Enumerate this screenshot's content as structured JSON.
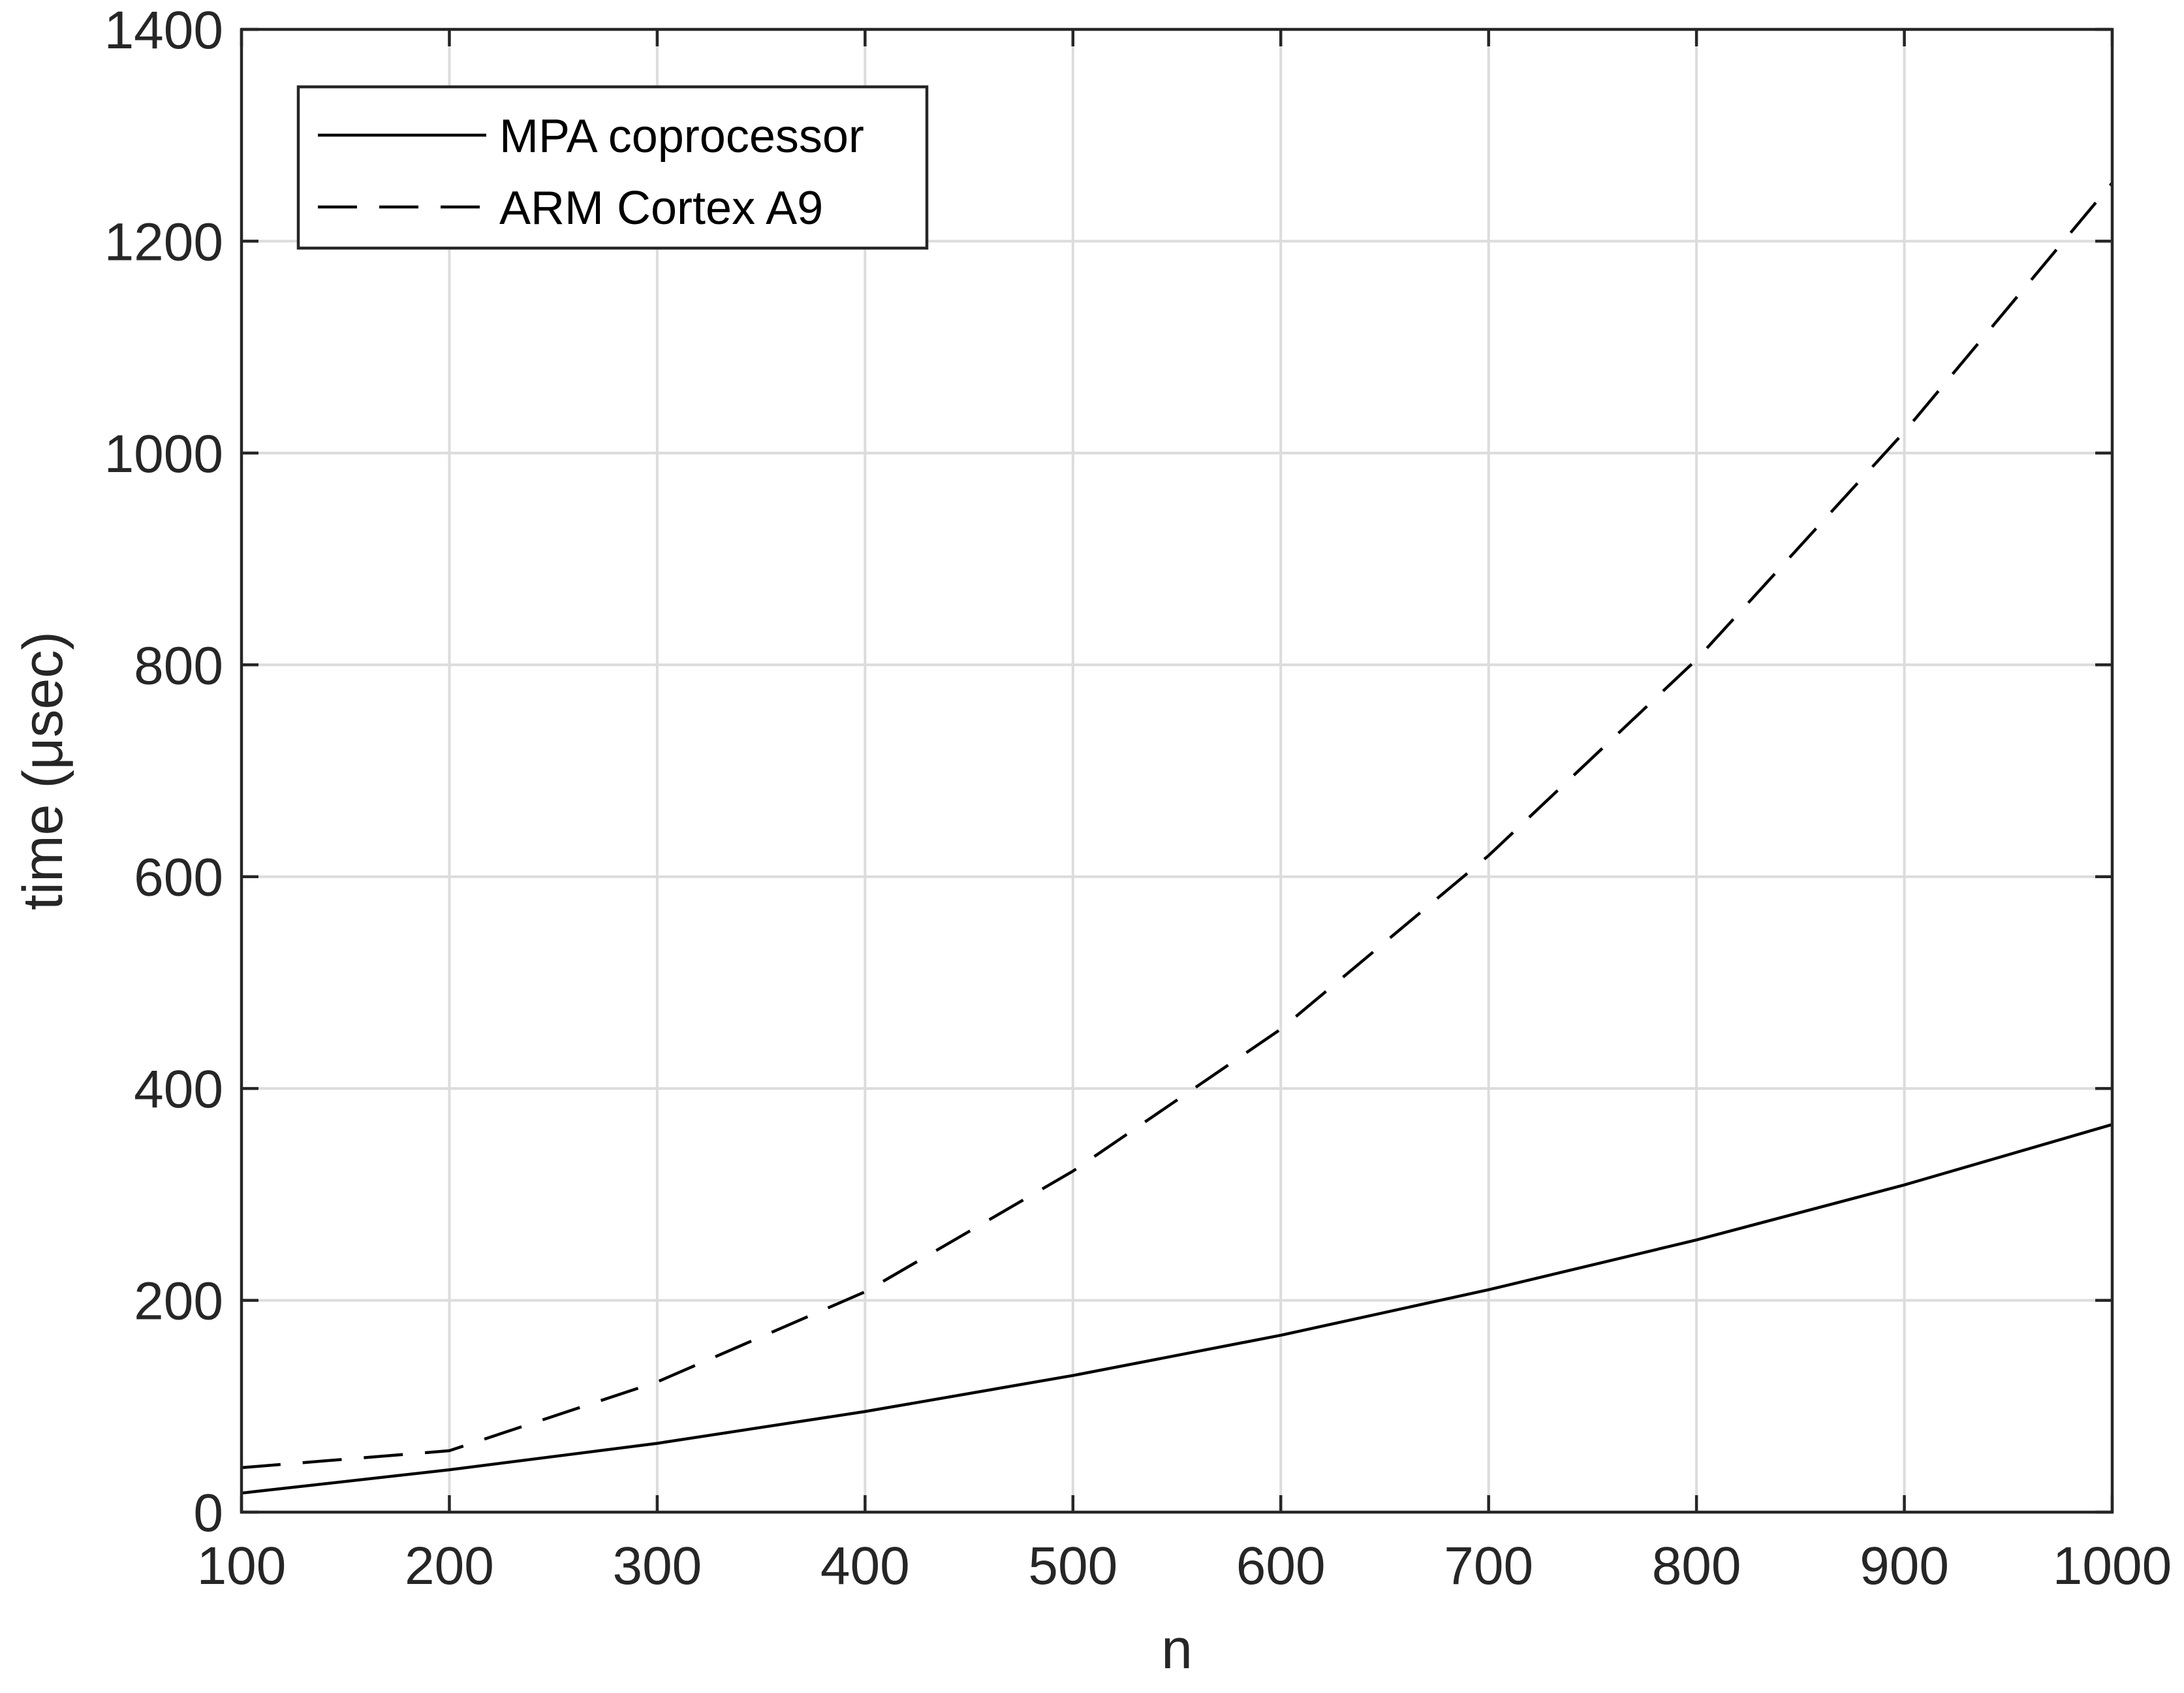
{
  "chart_data": {
    "type": "line",
    "title": "",
    "xlabel": "n",
    "ylabel": "time (μsec)",
    "xlim": [
      100,
      1000
    ],
    "ylim": [
      0,
      1400
    ],
    "xticks": [
      100,
      200,
      300,
      400,
      500,
      600,
      700,
      800,
      900,
      1000
    ],
    "yticks": [
      0,
      200,
      400,
      600,
      800,
      1000,
      1200,
      1400
    ],
    "grid": true,
    "legend": "top-left",
    "x": [
      100,
      200,
      300,
      400,
      500,
      600,
      700,
      800,
      900,
      1000
    ],
    "series": [
      {
        "name": "MPA coprocessor",
        "style": "solid",
        "color": "#000000",
        "values": [
          18,
          40,
          65,
          95,
          129,
          167,
          210,
          257,
          309,
          366
        ]
      },
      {
        "name": "ARM Cortex A9",
        "style": "dashed",
        "color": "#000000",
        "values": [
          42,
          58,
          123,
          208,
          322,
          456,
          620,
          805,
          1020,
          1255
        ]
      }
    ],
    "colors": {
      "axis": "#262626",
      "grid": "#dcdcdc",
      "line": "#000000"
    }
  }
}
